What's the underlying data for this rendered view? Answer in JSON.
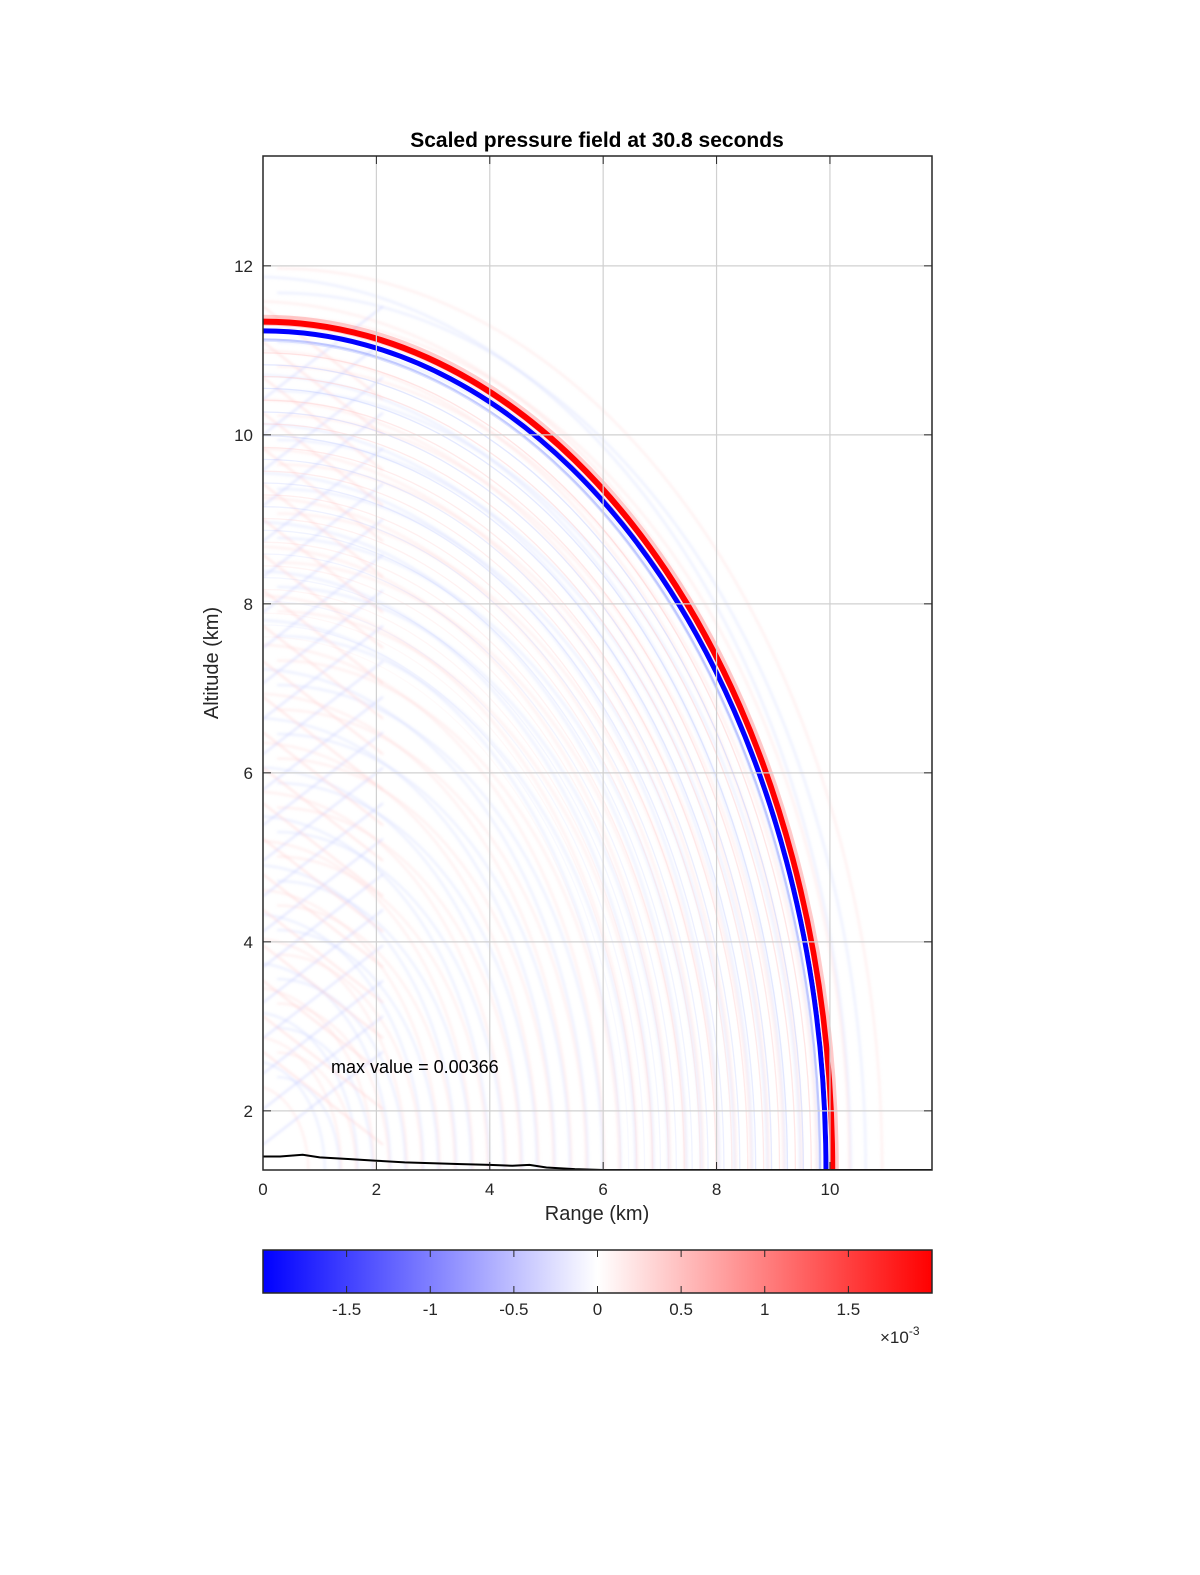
{
  "chart_data": {
    "type": "heatmap",
    "title": "Scaled pressure field at 30.8 seconds",
    "xlabel": "Range (km)",
    "ylabel": "Altitude (km)",
    "xlim": [
      0,
      11.8
    ],
    "ylim": [
      1.3,
      13.3
    ],
    "xticks": [
      0,
      2,
      4,
      6,
      8,
      10
    ],
    "yticks": [
      2,
      4,
      6,
      8,
      10,
      12
    ],
    "grid": true,
    "wavefront": {
      "center": [
        0,
        1.3
      ],
      "radius_km": 10.0,
      "positive_color": "#ff0000",
      "negative_color": "#0000ff"
    },
    "annotation": {
      "text": "max value = 0.00366",
      "x": 1.2,
      "y": 2.45
    },
    "terrain": {
      "x": [
        0,
        0.3,
        0.7,
        1.0,
        1.5,
        2.0,
        2.5,
        3.0,
        3.5,
        4.0,
        4.4,
        4.7,
        5.0,
        5.5,
        6.0,
        6.5,
        7.0,
        11.8
      ],
      "y": [
        1.46,
        1.46,
        1.48,
        1.45,
        1.43,
        1.41,
        1.39,
        1.38,
        1.37,
        1.36,
        1.35,
        1.36,
        1.33,
        1.31,
        1.3,
        1.3,
        1.3,
        1.3
      ]
    },
    "colorbar": {
      "colormap": "blue-white-red",
      "limits": [
        -0.002,
        0.002
      ],
      "tick_values": [
        -1.5,
        -1,
        -0.5,
        0,
        0.5,
        1,
        1.5
      ],
      "tick_labels": [
        "-1.5",
        "-1",
        "-0.5",
        "0",
        "0.5",
        "1",
        "1.5"
      ],
      "multiplier_text": "×10",
      "multiplier_exponent": "-3",
      "low_color": "#0000ff",
      "mid_color": "#ffffff",
      "high_color": "#ff0000"
    }
  }
}
